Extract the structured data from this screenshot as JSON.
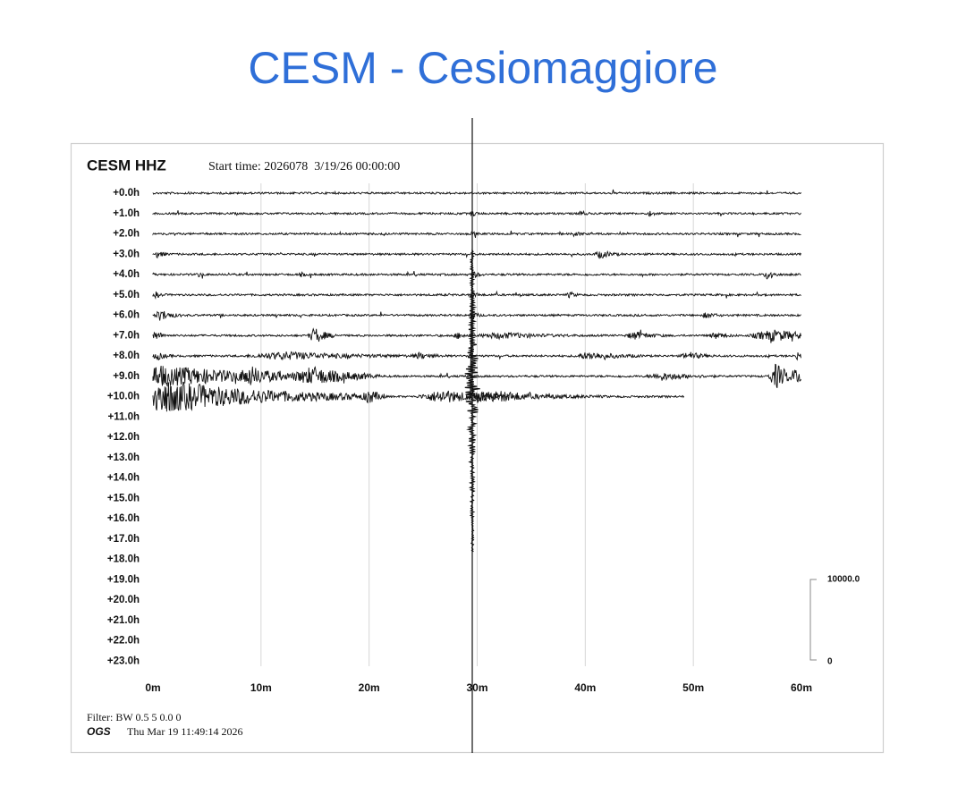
{
  "title": "CESM - Cesiomaggiore",
  "plot": {
    "station": "CESM HHZ",
    "start_time": "Start time: 2026078  3/19/26 00:00:00",
    "row_labels": [
      "+0.0h",
      "+1.0h",
      "+2.0h",
      "+3.0h",
      "+4.0h",
      "+5.0h",
      "+6.0h",
      "+7.0h",
      "+8.0h",
      "+9.0h",
      "+10.0h",
      "+11.0h",
      "+12.0h",
      "+13.0h",
      "+14.0h",
      "+15.0h",
      "+16.0h",
      "+17.0h",
      "+18.0h",
      "+19.0h",
      "+20.0h",
      "+21.0h",
      "+22.0h",
      "+23.0h"
    ],
    "x_labels": [
      "0m",
      "10m",
      "20m",
      "30m",
      "40m",
      "50m",
      "60m"
    ],
    "scale": {
      "top": "10000.0",
      "bottom": "0"
    },
    "filter": "Filter: BW 0.5 5 0.0 0",
    "agency": "OGS",
    "timestamp": "Thu Mar 19 11:49:14 2026"
  }
}
